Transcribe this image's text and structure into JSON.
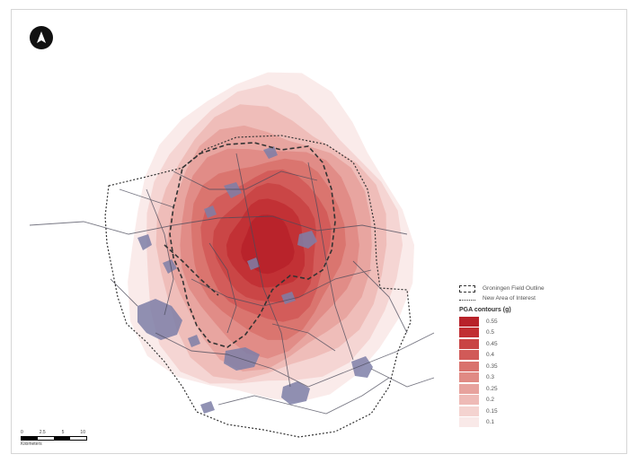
{
  "legend": {
    "outline_label": "Groningen Field Outline",
    "area_label": "New Area of Interest",
    "contours_title": "PGA contours (g)",
    "contours": [
      {
        "value": "0.55",
        "color": "#b8222a"
      },
      {
        "value": "0.5",
        "color": "#c12f33"
      },
      {
        "value": "0.45",
        "color": "#c94444"
      },
      {
        "value": "0.4",
        "color": "#d15a58"
      },
      {
        "value": "0.35",
        "color": "#d9726d"
      },
      {
        "value": "0.3",
        "color": "#e08a84"
      },
      {
        "value": "0.25",
        "color": "#e7a29d"
      },
      {
        "value": "0.2",
        "color": "#eebab6"
      },
      {
        "value": "0.15",
        "color": "#f4d3d0"
      },
      {
        "value": "0.1",
        "color": "#f9e9e8"
      }
    ]
  },
  "scalebar": {
    "ticks": [
      "0",
      "2.5",
      "5",
      "10"
    ],
    "unit": "Kilometers"
  },
  "icons": {
    "north": "north-arrow-icon"
  },
  "colors": {
    "settlement": "#7e7fa8",
    "road": "#4a4a5a",
    "outline": "#333333"
  }
}
